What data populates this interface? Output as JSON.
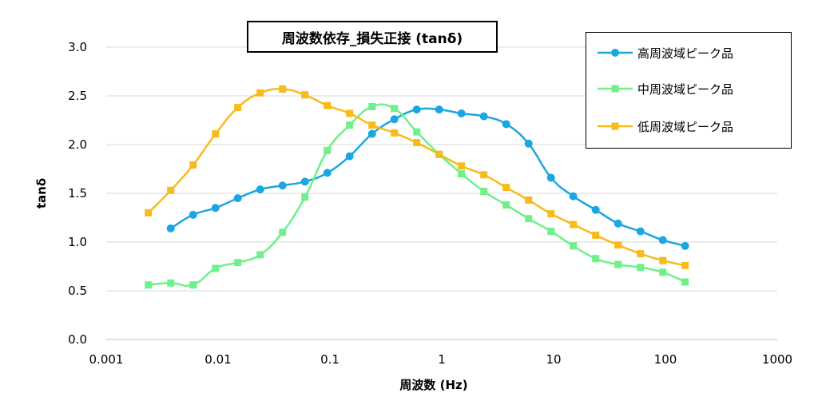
{
  "chart_data": {
    "type": "line",
    "title": "周波数依存_損失正接 (tanδ)",
    "xlabel": "周波数 (Hz)",
    "ylabel": "tanδ",
    "x_scale": "log",
    "xlim": [
      0.001,
      1000
    ],
    "ylim": [
      0.0,
      3.0
    ],
    "x_ticks": [
      "0.001",
      "0.01",
      "0.1",
      "1",
      "10",
      "100",
      "1000"
    ],
    "y_ticks": [
      "0.0",
      "0.5",
      "1.0",
      "1.5",
      "2.0",
      "2.5",
      "3.0"
    ],
    "grid": "horizontal",
    "legend_position": "top-right",
    "series": [
      {
        "name": "高周波域ピーク品",
        "color": "#1aa6e0",
        "marker": "circle",
        "x": [
          0.00377,
          0.00598,
          0.00948,
          0.015,
          0.0238,
          0.0377,
          0.0598,
          0.0948,
          0.15,
          0.238,
          0.377,
          0.598,
          0.948,
          1.5,
          2.38,
          3.77,
          5.98,
          9.48,
          15.0,
          23.8,
          37.7,
          59.8,
          94.8,
          150
        ],
        "y": [
          1.14,
          1.28,
          1.35,
          1.45,
          1.54,
          1.58,
          1.62,
          1.71,
          1.88,
          2.11,
          2.26,
          2.36,
          2.36,
          2.32,
          2.29,
          2.21,
          2.01,
          1.66,
          1.47,
          1.33,
          1.19,
          1.11,
          1.02,
          0.96
        ]
      },
      {
        "name": "中周波域ピーク品",
        "color": "#6ff08a",
        "marker": "square",
        "x": [
          0.00238,
          0.00377,
          0.00598,
          0.00948,
          0.015,
          0.0238,
          0.0377,
          0.0598,
          0.0948,
          0.15,
          0.238,
          0.377,
          0.598,
          0.948,
          1.5,
          2.38,
          3.77,
          5.98,
          9.48,
          15.0,
          23.8,
          37.7,
          59.8,
          94.8,
          150
        ],
        "y": [
          0.56,
          0.58,
          0.56,
          0.73,
          0.79,
          0.87,
          1.1,
          1.46,
          1.94,
          2.2,
          2.39,
          2.37,
          2.13,
          1.9,
          1.7,
          1.52,
          1.38,
          1.24,
          1.11,
          0.96,
          0.83,
          0.77,
          0.74,
          0.69,
          0.59
        ]
      },
      {
        "name": "低周波域ピーク品",
        "color": "#f7bb1a",
        "marker": "square",
        "x": [
          0.00238,
          0.00377,
          0.00598,
          0.00948,
          0.015,
          0.0238,
          0.0377,
          0.0598,
          0.0948,
          0.15,
          0.238,
          0.377,
          0.598,
          0.948,
          1.5,
          2.38,
          3.77,
          5.98,
          9.48,
          15.0,
          23.8,
          37.7,
          59.8,
          94.8,
          150
        ],
        "y": [
          1.3,
          1.53,
          1.79,
          2.11,
          2.38,
          2.53,
          2.57,
          2.51,
          2.4,
          2.32,
          2.2,
          2.12,
          2.02,
          1.9,
          1.78,
          1.69,
          1.56,
          1.43,
          1.29,
          1.18,
          1.07,
          0.97,
          0.88,
          0.81,
          0.76
        ]
      }
    ]
  }
}
